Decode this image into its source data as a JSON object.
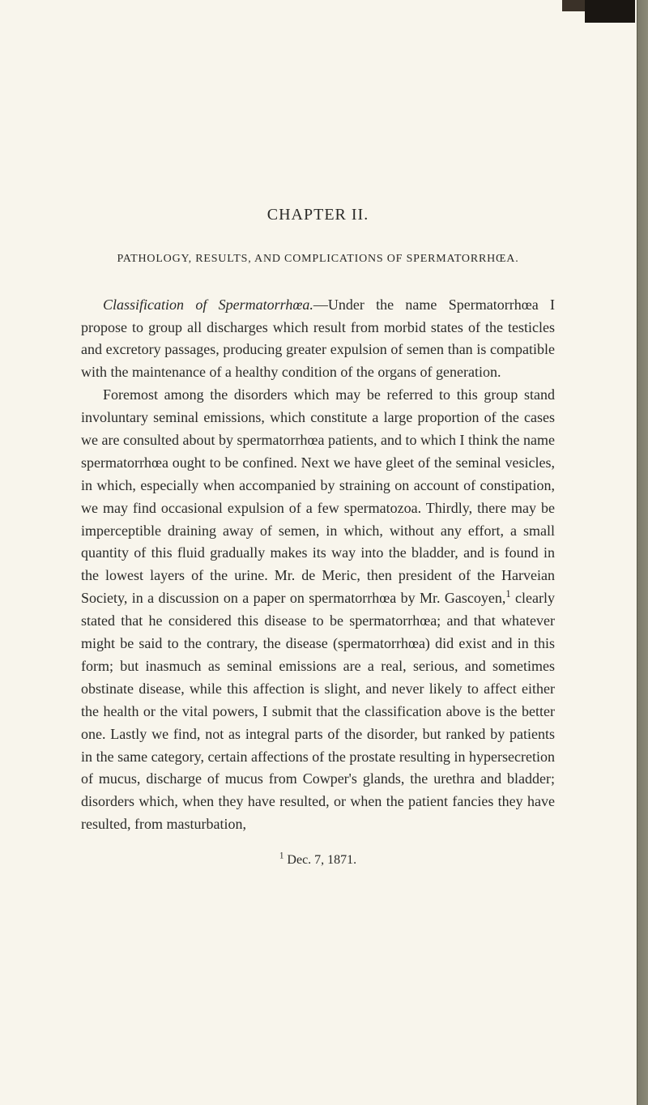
{
  "page": {
    "background_color": "#f8f5ec",
    "text_color": "#2a2a28",
    "font_family": "Georgia, Times New Roman, serif",
    "body_font_size": 18,
    "line_height": 1.55
  },
  "chapter": {
    "title": "CHAPTER II.",
    "font_size": 20
  },
  "section": {
    "title": "PATHOLOGY, RESULTS, AND COMPLICATIONS OF SPERMATORRHŒA.",
    "font_size": 14
  },
  "paragraphs": {
    "p1_italic": "Classification of Spermatorrhœa.",
    "p1_rest": "—Under the name Spermatorrhœa I propose to group all discharges which result from morbid states of the testicles and excretory passages, producing greater expulsion of semen than is compatible with the maintenance of a healthy condition of the organs of generation.",
    "p2": "Foremost among the disorders which may be referred to this group stand involuntary seminal emissions, which constitute a large proportion of the cases we are consulted about by spermatorrhœa patients, and to which I think the name spermatorrhœa ought to be confined. Next we have gleet of the seminal vesicles, in which, especially when accompanied by straining on account of constipation, we may find occasional expulsion of a few spermatozoa. Thirdly, there may be imperceptible draining away of semen, in which, without any effort, a small quantity of this fluid gradually makes its way into the bladder, and is found in the lowest layers of the urine. Mr. de Meric, then president of the Harveian Society, in a discussion on a paper on spermatorrhœa by Mr. Gascoyen,",
    "p2_sup": "1",
    "p2_after": " clearly stated that he considered this disease to be spermatorrhœa; and that whatever might be said to the contrary, the disease (spermatorrhœa) did exist and in this form; but inasmuch as seminal emissions are a real, serious, and sometimes obstinate disease, while this affection is slight, and never likely to affect either the health or the vital powers, I submit that the classification above is the better one. Lastly we find, not as integral parts of the disorder, but ranked by patients in the same category, certain affections of the prostate resulting in hypersecretion of mucus, discharge of mucus from Cowper's glands, the urethra and bladder; disorders which, when they have resulted, or when the patient fancies they have resulted, from masturbation,"
  },
  "footnote": {
    "marker": "1",
    "text": " Dec. 7, 1871."
  }
}
